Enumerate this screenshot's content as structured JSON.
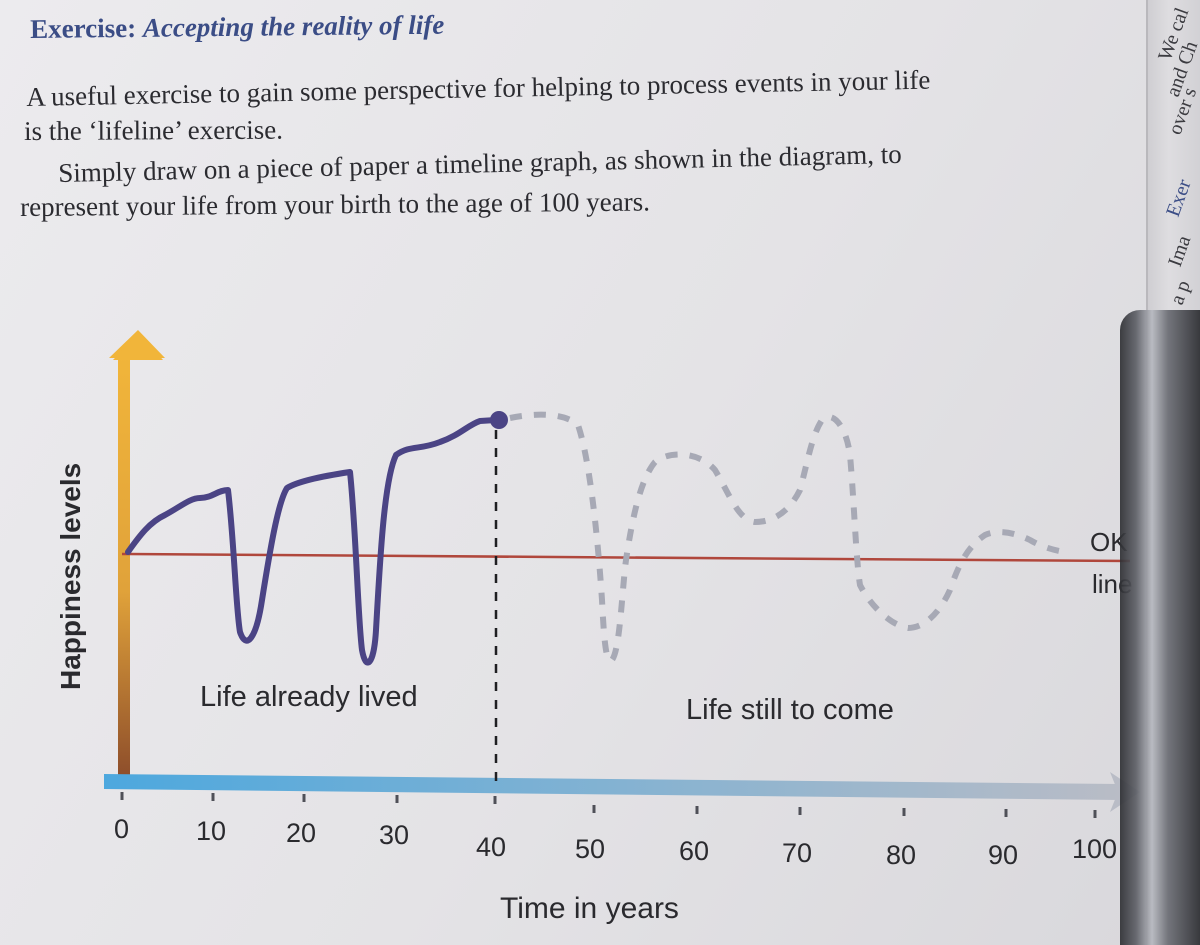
{
  "heading": {
    "label": "Exercise:",
    "title": "Accepting the reality of life"
  },
  "paragraphs": [
    "A useful exercise to gain some perspective for helping to process events in your life",
    "is the ‘lifeline’ exercise.",
    "Simply draw on a piece of paper a timeline graph, as shown in the diagram, to",
    "represent your life from your birth to the age of 100 years."
  ],
  "facing_page_fragments": [
    "We cal",
    "and Ch",
    "over s",
    "Exer",
    "Ima",
    "a p"
  ],
  "diagram": {
    "y_axis_label": "Happiness levels",
    "x_axis_label": "Time in years",
    "x_ticks": [
      "0",
      "10",
      "20",
      "30",
      "40",
      "50",
      "60",
      "70",
      "80",
      "90",
      "100"
    ],
    "ok_line_label_1": "OK",
    "ok_line_label_2": "line",
    "lived_label": "Life already lived",
    "to_come_label": "Life still to come",
    "colors": {
      "lived_curve": "#4b4485",
      "future_curve": "#a7a9b5",
      "ok_line": "#b0473c",
      "y_axis_top": "#f1b53a",
      "y_axis_bottom": "#8a4a2a",
      "x_axis_start": "#4da8de",
      "x_axis_end": "#b9bcc6",
      "heading": "#3b4d86"
    }
  }
}
